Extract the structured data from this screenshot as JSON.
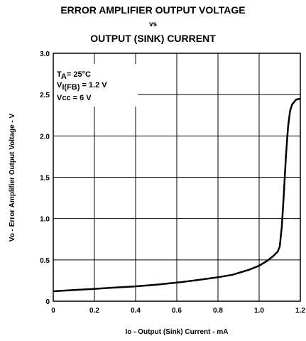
{
  "chart_data": {
    "type": "line",
    "title_line1": "ERROR AMPLIFIER OUTPUT VOLTAGE",
    "title_line2": "vs",
    "title_line3": "OUTPUT (SINK) CURRENT",
    "xlabel": "Io - Output (Sink) Current - mA",
    "ylabel": "Vo - Error Amplifier Output Voltage - V",
    "xlim": [
      0,
      1.2
    ],
    "ylim": [
      0,
      3.0
    ],
    "xticks": [
      "0",
      "0.2",
      "0.4",
      "0.6",
      "0.8",
      "1.0",
      "1.2"
    ],
    "yticks": [
      "0",
      "0.5",
      "1.0",
      "1.5",
      "2.0",
      "2.5",
      "3.0"
    ],
    "grid": true,
    "annotation": {
      "ta_main": "T",
      "ta_sub": "A",
      "ta_rest": "= 25°C",
      "vi_main": "V",
      "vi_sub": "I(FB)",
      "vi_rest": " = 1.2 V",
      "vcc": "Vcc = 6 V"
    },
    "series": [
      {
        "x": [
          0,
          0.1,
          0.2,
          0.3,
          0.4,
          0.5,
          0.6,
          0.7,
          0.8,
          0.87,
          0.95,
          1.0,
          1.04,
          1.07,
          1.09,
          1.1,
          1.11,
          1.12,
          1.13,
          1.14,
          1.15,
          1.16,
          1.18,
          1.2
        ],
        "y": [
          0.12,
          0.135,
          0.15,
          0.165,
          0.18,
          0.2,
          0.225,
          0.255,
          0.29,
          0.32,
          0.38,
          0.43,
          0.49,
          0.55,
          0.6,
          0.66,
          0.9,
          1.3,
          1.75,
          2.1,
          2.3,
          2.38,
          2.44,
          2.45
        ]
      }
    ]
  }
}
